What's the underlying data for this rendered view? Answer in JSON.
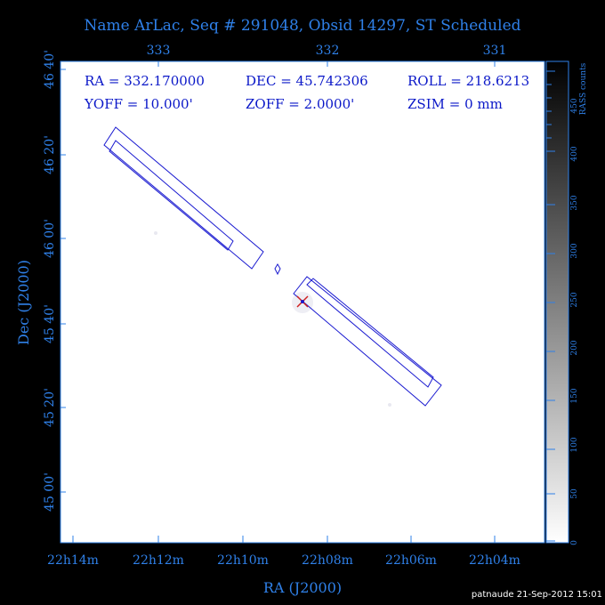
{
  "title": "Name ArLac, Seq # 291048, Obsid 14297, ST Scheduled",
  "top_axis_ticks": [
    "333",
    "332",
    "331"
  ],
  "left_axis_ticks": [
    "46 40'",
    "46 20'",
    "46 00'",
    "45 40'",
    "45 20'",
    "45 00'"
  ],
  "bottom_axis_ticks": [
    "22h14m",
    "22h12m",
    "22h10m",
    "22h08m",
    "22h06m",
    "22h04m"
  ],
  "x_axis_label": "RA (J2000)",
  "y_axis_label": "Dec (J2000)",
  "info": {
    "ra": "RA = 332.170000",
    "dec": "DEC = 45.742306",
    "roll": "ROLL = 218.6213",
    "yoff": "YOFF =  10.000'",
    "zoff": "ZOFF =  2.0000'",
    "zsim": "ZSIM = 0 mm"
  },
  "colorbar": {
    "label": "RASS counts",
    "ticks": [
      "0",
      "50",
      "100",
      "150",
      "200",
      "250",
      "300",
      "350",
      "400",
      "450"
    ]
  },
  "footer": "patnaude 21-Sep-2012 15:01",
  "colors": {
    "background": "#000000",
    "axis_text": "#2f80e8",
    "info_text": "#0a17c8",
    "detector_outline": "#1a1ad0",
    "target_marker": "#d02020"
  }
}
